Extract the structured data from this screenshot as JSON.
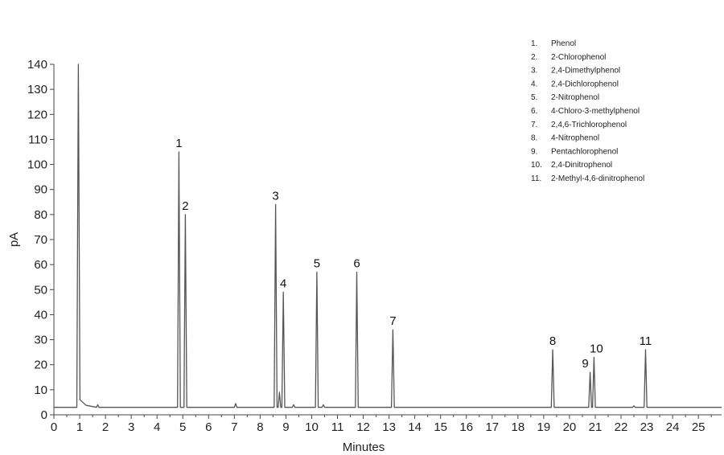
{
  "chart_data": {
    "type": "line",
    "xlabel": "Minutes",
    "ylabel": "pA",
    "xlim": [
      0,
      25.9
    ],
    "ylim": [
      0,
      140
    ],
    "x_ticks": [
      0,
      1,
      2,
      3,
      4,
      5,
      6,
      7,
      8,
      9,
      10,
      11,
      12,
      13,
      14,
      15,
      16,
      17,
      18,
      19,
      20,
      21,
      22,
      23,
      24,
      25
    ],
    "y_ticks": [
      0,
      10,
      20,
      30,
      40,
      50,
      60,
      70,
      80,
      90,
      100,
      110,
      120,
      130,
      140
    ],
    "grid": false,
    "baseline": 3,
    "legend_position": "top-right",
    "line_color": "#555555",
    "solvent_peak": {
      "x": 0.95,
      "y": 140
    },
    "minor_peaks": [
      {
        "x": 1.7,
        "y": 4
      },
      {
        "x": 7.05,
        "y": 4.5
      },
      {
        "x": 8.75,
        "y": 9
      },
      {
        "x": 9.3,
        "y": 4
      },
      {
        "x": 10.45,
        "y": 4
      },
      {
        "x": 22.5,
        "y": 3.6
      }
    ],
    "peaks": [
      {
        "label": "1",
        "x": 4.85,
        "y": 105,
        "name": "Phenol"
      },
      {
        "label": "2",
        "x": 5.1,
        "y": 80,
        "name": "2-Chlorophenol"
      },
      {
        "label": "3",
        "x": 8.6,
        "y": 84,
        "name": "2,4-Dimethylphenol"
      },
      {
        "label": "4",
        "x": 8.9,
        "y": 49,
        "name": "2,4-Dichlorophenol"
      },
      {
        "label": "5",
        "x": 10.2,
        "y": 57,
        "name": "2-Nitrophenol"
      },
      {
        "label": "6",
        "x": 11.75,
        "y": 57,
        "name": "4-Chloro-3-methylphenol"
      },
      {
        "label": "7",
        "x": 13.15,
        "y": 34,
        "name": "2,4,6-Trichlorophenol"
      },
      {
        "label": "8",
        "x": 19.35,
        "y": 26,
        "name": "4-Nitrophenol"
      },
      {
        "label": "9",
        "x": 20.8,
        "y": 17,
        "name": "Pentachlorophenol"
      },
      {
        "label": "10",
        "x": 20.95,
        "y": 23,
        "name": "2,4-Dinitrophenol"
      },
      {
        "label": "11",
        "x": 22.95,
        "y": 26,
        "name": "2-Methyl-4,6-dinitrophenol"
      }
    ]
  }
}
